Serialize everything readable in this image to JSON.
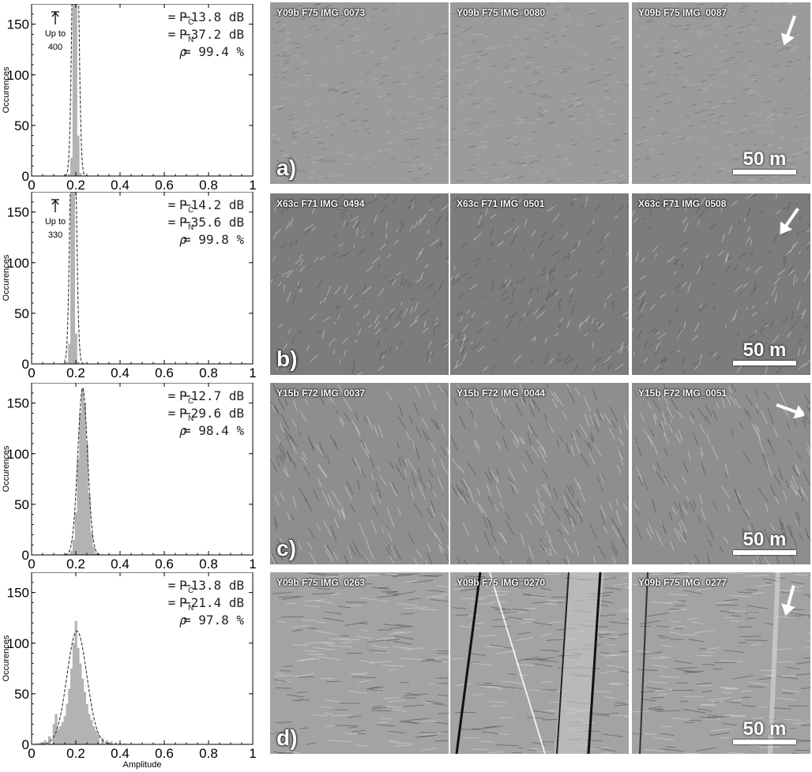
{
  "chart_data": [
    {
      "type": "bar",
      "panel": "a",
      "ylabel": "Occurences",
      "xlabel": "",
      "xlim": [
        0,
        1
      ],
      "ylim": [
        0,
        170
      ],
      "xticks": [
        "0",
        "0.2",
        "0.4",
        "0.6",
        "0.8",
        "1"
      ],
      "yticks": [
        "0",
        "50",
        "100",
        "150"
      ],
      "stats": [
        {
          "sym": "P",
          "sub": "C",
          "value": "= −13.8 dB"
        },
        {
          "sym": "P",
          "sub": "N",
          "value": "= −37.2 dB"
        },
        {
          "sym": "ρ",
          "sub": "",
          "value": "= 99.4 %"
        }
      ],
      "annotation": {
        "line1": "Up to",
        "line2": "400"
      },
      "hist_x": [
        0.17,
        0.18,
        0.19,
        0.2,
        0.21,
        0.22
      ],
      "hist_y": [
        2,
        18,
        170,
        170,
        40,
        3
      ],
      "fit_mean": 0.198,
      "fit_sigma": 0.012,
      "fit_peak": 400
    },
    {
      "type": "bar",
      "panel": "b",
      "ylabel": "Occurences",
      "xlabel": "",
      "xlim": [
        0,
        1
      ],
      "ylim": [
        0,
        170
      ],
      "xticks": [
        "0",
        "0.2",
        "0.4",
        "0.6",
        "0.8",
        "1"
      ],
      "yticks": [
        "0",
        "50",
        "100",
        "150"
      ],
      "stats": [
        {
          "sym": "P",
          "sub": "C",
          "value": "= −14.2 dB"
        },
        {
          "sym": "P",
          "sub": "N",
          "value": "= −35.6 dB"
        },
        {
          "sym": "ρ",
          "sub": "",
          "value": "= 99.8 %"
        }
      ],
      "annotation": {
        "line1": "Up to",
        "line2": "330"
      },
      "hist_x": [
        0.16,
        0.17,
        0.18,
        0.19,
        0.2,
        0.21
      ],
      "hist_y": [
        2,
        20,
        170,
        170,
        30,
        2
      ],
      "fit_mean": 0.188,
      "fit_sigma": 0.012,
      "fit_peak": 330
    },
    {
      "type": "bar",
      "panel": "c",
      "ylabel": "Occurences",
      "xlabel": "",
      "xlim": [
        0,
        1
      ],
      "ylim": [
        0,
        170
      ],
      "xticks": [
        "0",
        "0.2",
        "0.4",
        "0.6",
        "0.8",
        "1"
      ],
      "yticks": [
        "0",
        "50",
        "100",
        "150"
      ],
      "stats": [
        {
          "sym": "P",
          "sub": "C",
          "value": "= −12.7 dB"
        },
        {
          "sym": "P",
          "sub": "N",
          "value": "= −29.6 dB"
        },
        {
          "sym": "ρ",
          "sub": "",
          "value": "= 98.4 %"
        }
      ],
      "annotation": null,
      "hist_x": [
        0.17,
        0.18,
        0.19,
        0.2,
        0.21,
        0.22,
        0.23,
        0.24,
        0.25,
        0.26,
        0.27,
        0.28,
        0.29
      ],
      "hist_y": [
        1,
        4,
        15,
        42,
        95,
        140,
        165,
        150,
        110,
        60,
        22,
        8,
        2
      ],
      "fit_mean": 0.231,
      "fit_sigma": 0.022,
      "fit_peak": 165
    },
    {
      "type": "bar",
      "panel": "d",
      "ylabel": "Occurences",
      "xlabel": "Amplitude",
      "xlim": [
        0,
        1
      ],
      "ylim": [
        0,
        170
      ],
      "xticks": [
        "0",
        "0.2",
        "0.4",
        "0.6",
        "0.8",
        "1"
      ],
      "yticks": [
        "0",
        "50",
        "100",
        "150"
      ],
      "stats": [
        {
          "sym": "P",
          "sub": "C",
          "value": "= −13.8 dB"
        },
        {
          "sym": "P",
          "sub": "N",
          "value": "= −21.4 dB"
        },
        {
          "sym": "ρ",
          "sub": "",
          "value": "= 97.8 %"
        }
      ],
      "annotation": null,
      "hist_x": [
        0.02,
        0.04,
        0.06,
        0.08,
        0.1,
        0.11,
        0.12,
        0.13,
        0.14,
        0.15,
        0.16,
        0.17,
        0.18,
        0.19,
        0.2,
        0.21,
        0.22,
        0.23,
        0.24,
        0.25,
        0.26,
        0.27,
        0.28,
        0.29,
        0.3,
        0.32,
        0.34,
        0.36,
        0.38,
        0.4,
        0.42
      ],
      "hist_y": [
        1,
        2,
        4,
        8,
        20,
        30,
        15,
        18,
        22,
        28,
        40,
        55,
        75,
        100,
        122,
        95,
        80,
        65,
        52,
        40,
        30,
        24,
        18,
        14,
        10,
        6,
        4,
        3,
        2,
        1,
        1
      ],
      "fit_mean": 0.205,
      "fit_sigma": 0.045,
      "fit_peak": 112
    }
  ],
  "image_grid": {
    "rows": [
      {
        "letter": "a)",
        "scale": "50 m",
        "arrow_angle": 200,
        "tiles": [
          "Y09b F75 IMG_0073",
          "Y09b F75 IMG_0080",
          "Y09b F75 IMG_0087"
        ],
        "tone": "#9b9b9b"
      },
      {
        "letter": "b)",
        "scale": "50 m",
        "arrow_angle": 215,
        "tiles": [
          "X63c F71 IMG_0494",
          "X63c F71 IMG_0501",
          "X63c F71 IMG_0508"
        ],
        "tone": "#7c7c7c"
      },
      {
        "letter": "c)",
        "scale": "50 m",
        "arrow_angle": 110,
        "tiles": [
          "Y15b F72 IMG_0037",
          "Y15b F72 IMG_0044",
          "Y15b F72 IMG_0051"
        ],
        "tone": "#8e8e8e"
      },
      {
        "letter": "d)",
        "scale": "50 m",
        "arrow_angle": 195,
        "tiles": [
          "Y09b F75 IMG_0263",
          "Y09b F75 IMG_0270",
          "Y09b F75 IMG_0277"
        ],
        "tone": "#a3a3a3"
      }
    ]
  }
}
